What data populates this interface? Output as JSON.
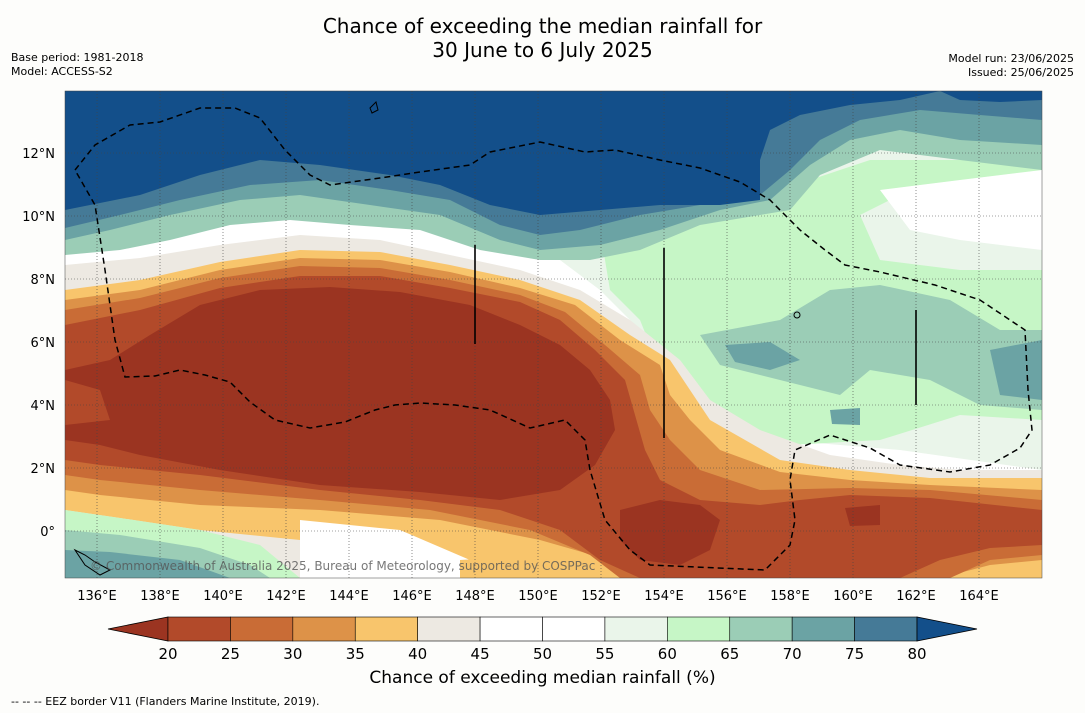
{
  "title_line1": "Chance of exceeding the median rainfall for",
  "title_line2": "30 June to 6 July 2025",
  "meta_left": {
    "base_period": "Base period: 1981-2018",
    "model": "Model: ACCESS-S2"
  },
  "meta_right": {
    "model_run": "Model run: 23/06/2025",
    "issued": "Issued: 25/06/2025"
  },
  "copyright": "© Commonwealth of Australia 2025, Bureau of Meteorology, supported by COSPPac",
  "lat_labels": [
    "12°N",
    "10°N",
    "8°N",
    "6°N",
    "4°N",
    "2°N",
    "0°"
  ],
  "lat_values": [
    12,
    10,
    8,
    6,
    4,
    2,
    0
  ],
  "lon_labels": [
    "136°E",
    "138°E",
    "140°E",
    "142°E",
    "144°E",
    "146°E",
    "148°E",
    "150°E",
    "152°E",
    "154°E",
    "156°E",
    "158°E",
    "160°E",
    "162°E",
    "164°E"
  ],
  "lon_values": [
    136,
    138,
    140,
    142,
    144,
    146,
    148,
    150,
    152,
    154,
    156,
    158,
    160,
    162,
    164
  ],
  "extent": {
    "lon_min": 135,
    "lon_max": 166,
    "lat_min": -1.5,
    "lat_max": 14
  },
  "colorbar": {
    "ticks": [
      "20",
      "25",
      "30",
      "35",
      "40",
      "45",
      "50",
      "55",
      "60",
      "65",
      "70",
      "75",
      "80"
    ],
    "colors": [
      "#9b3421",
      "#b24a2a",
      "#c96c36",
      "#dd9248",
      "#f8c56c",
      "#ede9e2",
      "#ffffff",
      "#ffffff",
      "#eaf5ea",
      "#c6f6c6",
      "#9bcdb6",
      "#6ba3a4",
      "#457a97",
      "#134f8a"
    ],
    "label": "Chance of exceeding median rainfall (%)"
  },
  "footnote": "--  --  -- EEZ border V11 (Flanders Marine Institute, 2019).",
  "regions": [
    {
      "name": "north-blue-band",
      "color": "#134f8a"
    },
    {
      "name": "equatorial-dry-band",
      "color": "#9b3421"
    },
    {
      "name": "eastern-wet-band",
      "color": "#c6f6c6"
    }
  ]
}
